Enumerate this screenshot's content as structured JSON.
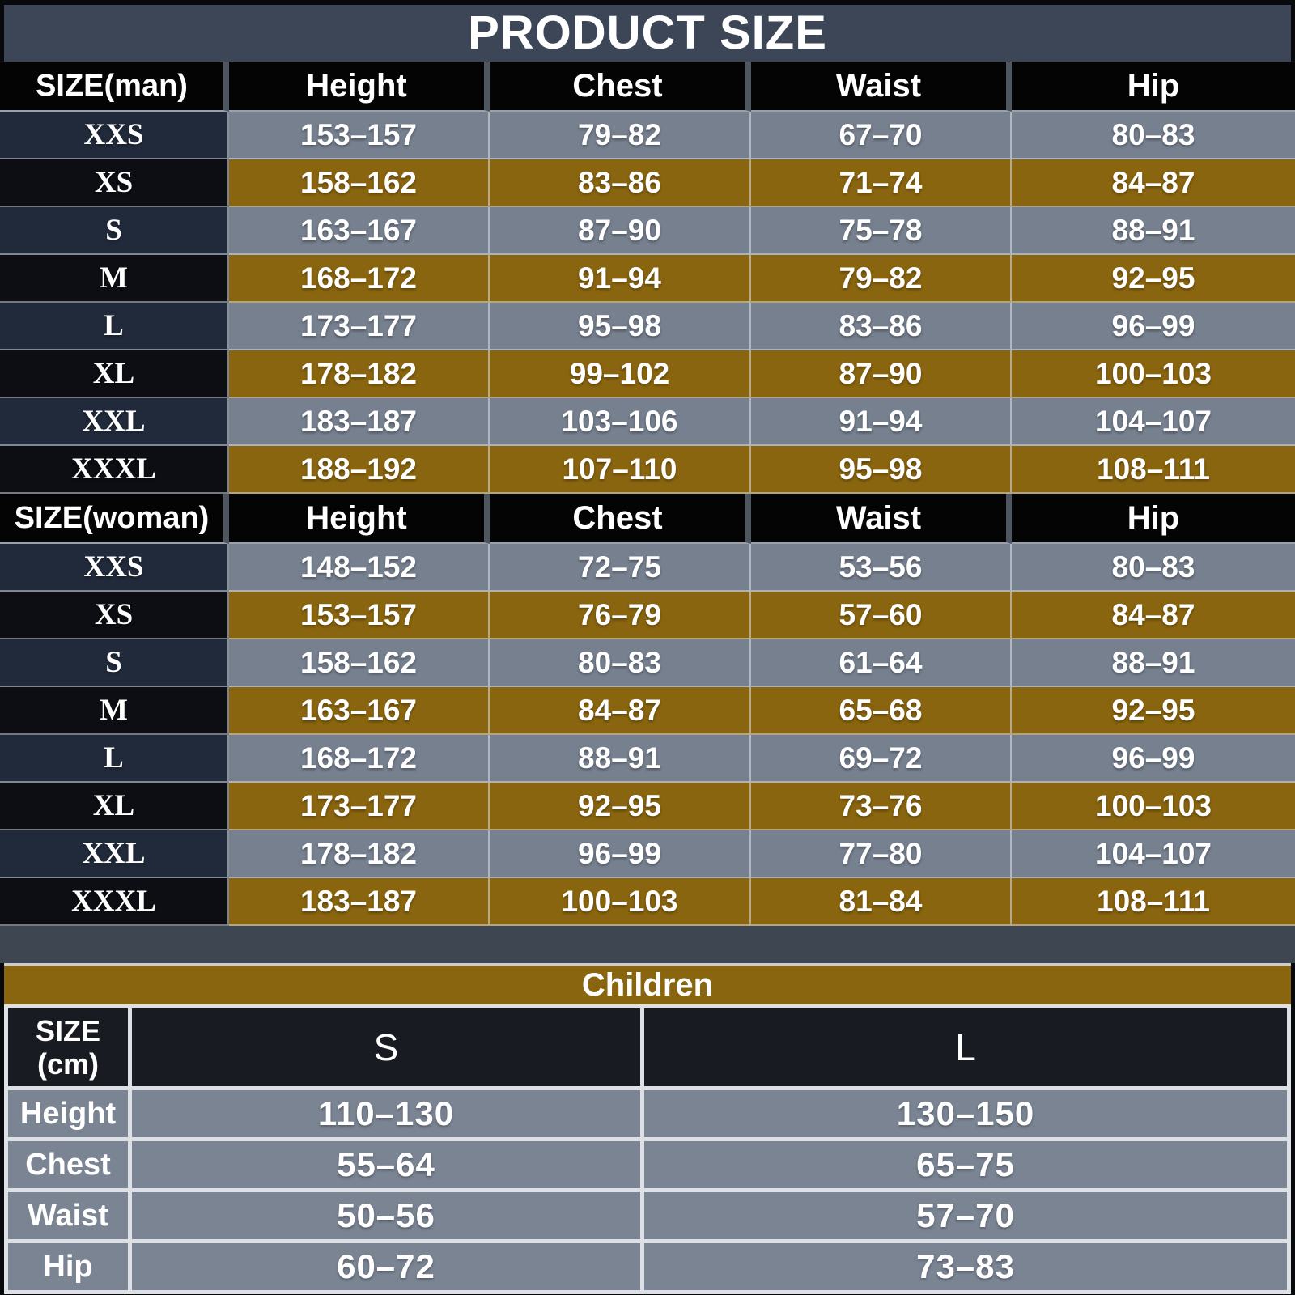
{
  "title": "PRODUCT SIZE",
  "colors": {
    "title_bar": "#3D4656",
    "header_black": "#040404",
    "row_gray": "#76808F",
    "row_gold": "#8A650F",
    "size_cell_navy": "#212A3A",
    "size_cell_black": "#0C0E13",
    "gap_strip": "#3E4751",
    "children_header_bar": "#8A650F",
    "children_header_cell": "#181B22",
    "children_cell_gray": "#7A8493",
    "grid_line": "#DDE1E6",
    "text": "#FFFFFF"
  },
  "chart_data": [
    {
      "type": "table",
      "section": "man",
      "columns": [
        "SIZE(man)",
        "Height",
        "Chest",
        "Waist",
        "Hip"
      ],
      "rows": [
        [
          "XXS",
          "153–157",
          "79–82",
          "67–70",
          "80–83"
        ],
        [
          "XS",
          "158–162",
          "83–86",
          "71–74",
          "84–87"
        ],
        [
          "S",
          "163–167",
          "87–90",
          "75–78",
          "88–91"
        ],
        [
          "M",
          "168–172",
          "91–94",
          "79–82",
          "92–95"
        ],
        [
          "L",
          "173–177",
          "95–98",
          "83–86",
          "96–99"
        ],
        [
          "XL",
          "178–182",
          "99–102",
          "87–90",
          "100–103"
        ],
        [
          "XXL",
          "183–187",
          "103–106",
          "91–94",
          "104–107"
        ],
        [
          "XXXL",
          "188–192",
          "107–110",
          "95–98",
          "108–111"
        ]
      ]
    },
    {
      "type": "table",
      "section": "woman",
      "columns": [
        "SIZE(woman)",
        "Height",
        "Chest",
        "Waist",
        "Hip"
      ],
      "rows": [
        [
          "XXS",
          "148–152",
          "72–75",
          "53–56",
          "80–83"
        ],
        [
          "XS",
          "153–157",
          "76–79",
          "57–60",
          "84–87"
        ],
        [
          "S",
          "158–162",
          "80–83",
          "61–64",
          "88–91"
        ],
        [
          "M",
          "163–167",
          "84–87",
          "65–68",
          "92–95"
        ],
        [
          "L",
          "168–172",
          "88–91",
          "69–72",
          "96–99"
        ],
        [
          "XL",
          "173–177",
          "92–95",
          "73–76",
          "100–103"
        ],
        [
          "XXL",
          "178–182",
          "96–99",
          "77–80",
          "104–107"
        ],
        [
          "XXXL",
          "183–187",
          "100–103",
          "81–84",
          "108–111"
        ]
      ]
    },
    {
      "type": "table",
      "section": "children",
      "title": "Children",
      "columns": [
        "SIZE (cm)",
        "S",
        "L"
      ],
      "rows": [
        [
          "Height",
          "110–130",
          "130–150"
        ],
        [
          "Chest",
          "55–64",
          "65–75"
        ],
        [
          "Waist",
          "50–56",
          "57–70"
        ],
        [
          "Hip",
          "60–72",
          "73–83"
        ]
      ]
    }
  ]
}
